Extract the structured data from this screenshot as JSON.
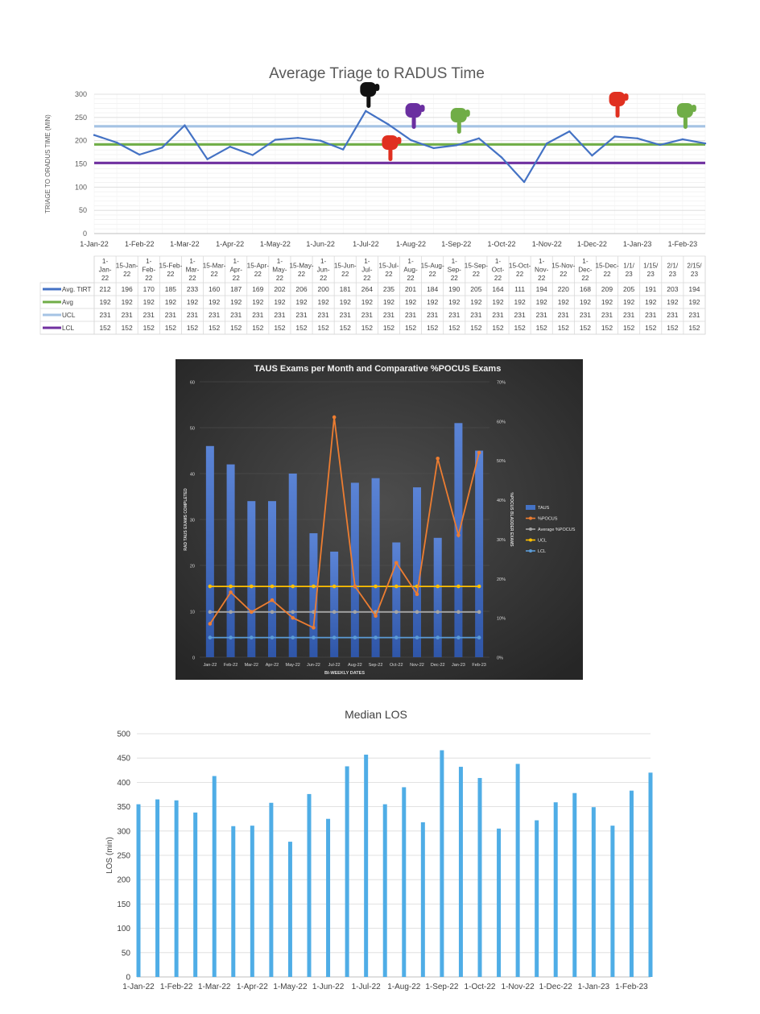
{
  "chart_data": [
    {
      "type": "line",
      "title": "Average Triage to RADUS Time",
      "ylabel": "TRIAGE TO ORADUS TIME (MIN)",
      "xlabel": "",
      "ylim": [
        0,
        300
      ],
      "yticks": [
        0,
        50,
        100,
        150,
        200,
        250,
        300
      ],
      "grid": true,
      "legend": "table-below",
      "axis_dates": [
        "1-Jan-22",
        "1-Feb-22",
        "1-Mar-22",
        "1-Apr-22",
        "1-May-22",
        "1-Jun-22",
        "1-Jul-22",
        "1-Aug-22",
        "1-Sep-22",
        "1-Oct-22",
        "1-Nov-22",
        "1-Dec-22",
        "1-Jan-23",
        "1-Feb-23"
      ],
      "categories": [
        "1-Jan-22",
        "15-Jan-22",
        "1-Feb-22",
        "15-Feb-22",
        "1-Mar-22",
        "15-Mar-22",
        "1-Apr-22",
        "15-Apr-22",
        "1-May-22",
        "15-May-22",
        "1-Jun-22",
        "15-Jun-22",
        "1-Jul-22",
        "15-Jul-22",
        "1-Aug-22",
        "15-Aug-22",
        "1-Sep-22",
        "15-Sep-22",
        "1-Oct-22",
        "15-Oct-22",
        "1-Nov-22",
        "15-Nov-22",
        "1-Dec-22",
        "15-Dec-22",
        "1/1/23",
        "1/15/23",
        "2/1/23",
        "2/15/23"
      ],
      "table_headers": [
        "1-Jan-22",
        "15-Jan-22",
        "1-Feb-22",
        "15-Feb-22",
        "1-Mar-22",
        "15-Mar-22",
        "1-Apr-22",
        "15-Apr-22",
        "1-May-22",
        "15-May-22",
        "1-Jun-22",
        "15-Jun-22",
        "1-Jul-22",
        "15-Jul-22",
        "1-Aug-22",
        "15-Aug-22",
        "1-Sep-22",
        "15-Sep-22",
        "1-Oct-22",
        "15-Oct-22",
        "1-Nov-22",
        "15-Nov-22",
        "1-Dec-22",
        "15-Dec-22",
        "1/1/23",
        "1/15/23",
        "2/1/23",
        "2/15/23"
      ],
      "series": [
        {
          "name": "Avg. TtRT",
          "color": "#4472c4",
          "values": [
            212,
            196,
            170,
            185,
            233,
            160,
            187,
            169,
            202,
            206,
            200,
            181,
            264,
            235,
            201,
            184,
            190,
            205,
            164,
            111,
            194,
            220,
            168,
            209,
            205,
            191,
            203,
            194
          ]
        },
        {
          "name": "Avg",
          "color": "#70ad47",
          "values": [
            192,
            192,
            192,
            192,
            192,
            192,
            192,
            192,
            192,
            192,
            192,
            192,
            192,
            192,
            192,
            192,
            192,
            192,
            192,
            192,
            192,
            192,
            192,
            192,
            192,
            192,
            192,
            192
          ]
        },
        {
          "name": "UCL",
          "color": "#a5c3e4",
          "values": [
            231,
            231,
            231,
            231,
            231,
            231,
            231,
            231,
            231,
            231,
            231,
            231,
            231,
            231,
            231,
            231,
            231,
            231,
            231,
            231,
            231,
            231,
            231,
            231,
            231,
            231,
            231,
            231
          ]
        },
        {
          "name": "LCL",
          "color": "#7030a0",
          "values": [
            152,
            152,
            152,
            152,
            152,
            152,
            152,
            152,
            152,
            152,
            152,
            152,
            152,
            152,
            152,
            152,
            152,
            152,
            152,
            152,
            152,
            152,
            152,
            152,
            152,
            152,
            152,
            152
          ]
        }
      ],
      "annotations": [
        {
          "icon": "pointing-hand-icon",
          "color": "#111111",
          "index": 12
        },
        {
          "icon": "pointing-hand-icon",
          "color": "#e03020",
          "index": 13
        },
        {
          "icon": "pointing-hand-icon",
          "color": "#6a2fa0",
          "index": 14
        },
        {
          "icon": "pointing-hand-icon",
          "color": "#70ad47",
          "index": 16
        },
        {
          "icon": "pointing-hand-icon",
          "color": "#e03020",
          "index": 23
        },
        {
          "icon": "pointing-hand-icon",
          "color": "#70ad47",
          "index": 26
        }
      ]
    },
    {
      "type": "bar",
      "title": "TAUS Exams per Month and Comparative %POCUS Exams",
      "xlabel": "BI-WEEKLY DATES",
      "ylabel": "RAD TAUS EXAMS COMPLETED",
      "y2label": "%POCUS BLADDER EXAMS",
      "ylim": [
        0,
        60
      ],
      "yticks": [
        0,
        10,
        20,
        30,
        40,
        50,
        60
      ],
      "y2lim": [
        0,
        70
      ],
      "y2ticks": [
        "0%",
        "10%",
        "20%",
        "30%",
        "40%",
        "50%",
        "60%",
        "70%"
      ],
      "categories": [
        "Jan-22",
        "Feb-22",
        "Mar-22",
        "Apr-22",
        "May-22",
        "Jun-22",
        "Jul-22",
        "Aug-22",
        "Sep-22",
        "Oct-22",
        "Nov-22",
        "Dec-22",
        "Jan-23",
        "Feb-23"
      ],
      "legend": "right",
      "background": "#2b2b2b",
      "series": [
        {
          "name": "TAUS",
          "kind": "bar",
          "color": "#4472c4",
          "values": [
            46,
            42,
            34,
            34,
            40,
            27,
            23,
            38,
            39,
            25,
            37,
            26,
            51,
            45
          ]
        },
        {
          "name": "%POCUS",
          "kind": "line",
          "axis": "right",
          "color": "#ed7d31",
          "values": [
            8.5,
            16.5,
            11.5,
            14.5,
            10,
            7.5,
            61,
            18,
            10.5,
            24,
            16,
            50.5,
            31,
            52
          ]
        },
        {
          "name": "Average %POCUS",
          "kind": "line",
          "axis": "right",
          "color": "#a5a5a5",
          "values": [
            11.5,
            11.5,
            11.5,
            11.5,
            11.5,
            11.5,
            11.5,
            11.5,
            11.5,
            11.5,
            11.5,
            11.5,
            11.5,
            11.5
          ]
        },
        {
          "name": "UCL",
          "kind": "line",
          "axis": "right",
          "color": "#ffc000",
          "values": [
            18,
            18,
            18,
            18,
            18,
            18,
            18,
            18,
            18,
            18,
            18,
            18,
            18,
            18
          ]
        },
        {
          "name": "LCL",
          "kind": "line",
          "axis": "right",
          "color": "#5b9bd5",
          "values": [
            5,
            5,
            5,
            5,
            5,
            5,
            5,
            5,
            5,
            5,
            5,
            5,
            5,
            5
          ]
        }
      ]
    },
    {
      "type": "bar",
      "title": "Median LOS",
      "xlabel": "",
      "ylabel": "LOS (min)",
      "ylim": [
        0,
        500
      ],
      "yticks": [
        0,
        50,
        100,
        150,
        200,
        250,
        300,
        350,
        400,
        450,
        500
      ],
      "grid": true,
      "color": "#4fade6",
      "xtick_labels": [
        "1-Jan-22",
        "1-Feb-22",
        "1-Mar-22",
        "1-Apr-22",
        "1-May-22",
        "1-Jun-22",
        "1-Jul-22",
        "1-Aug-22",
        "1-Sep-22",
        "1-Oct-22",
        "1-Nov-22",
        "1-Dec-22",
        "1-Jan-23",
        "1-Feb-23"
      ],
      "values": [
        355,
        365,
        363,
        338,
        413,
        310,
        311,
        358,
        278,
        376,
        325,
        433,
        457,
        355,
        390,
        318,
        466,
        432,
        409,
        305,
        438,
        322,
        359,
        378,
        349,
        311,
        383,
        420
      ]
    }
  ]
}
